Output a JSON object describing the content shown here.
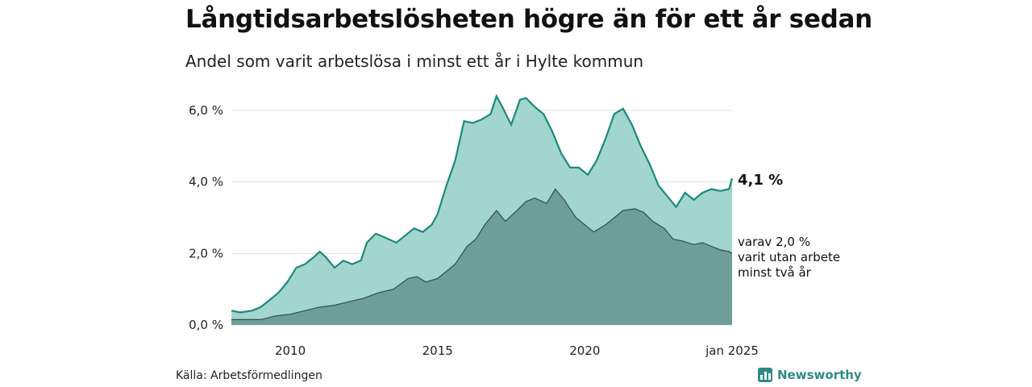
{
  "title": "Långtidsarbetslösheten högre än för ett år sedan",
  "subtitle": "Andel som varit arbetslösa i minst ett år i Hylte kommun",
  "source": "Källa: Arbetsförmedlingen",
  "brand": "Newsworthy",
  "colors": {
    "area_total": "#a3d5cf",
    "line_total": "#1a8a7a",
    "area_two_years": "#6f9d97",
    "line_two_years": "#2f4f4a",
    "grid": "#dddddd"
  },
  "chart_data": {
    "type": "area",
    "title": "Långtidsarbetslösheten högre än för ett år sedan",
    "subtitle": "Andel som varit arbetslösa i minst ett år i Hylte kommun",
    "x_range": [
      2008.0,
      2025.0
    ],
    "ylim": [
      0,
      6.0
    ],
    "y_ticks": [
      0,
      2,
      4,
      6
    ],
    "y_tick_labels": [
      "0,0 %",
      "2,0 %",
      "4,0 %",
      "6,0 %"
    ],
    "x_ticks": [
      2010,
      2015,
      2020,
      2025
    ],
    "x_tick_labels": [
      "2010",
      "2015",
      "2020",
      "jan 2025"
    ],
    "grid": true,
    "series": [
      {
        "x": [
          2008.0,
          2008.3,
          2008.7,
          2009.0,
          2009.3,
          2009.6,
          2009.9,
          2010.2,
          2010.5,
          2010.8,
          2011.0,
          2011.2,
          2011.5,
          2011.8,
          2012.1,
          2012.4,
          2012.6,
          2012.9,
          2013.2,
          2013.6,
          2013.9,
          2014.2,
          2014.5,
          2014.8,
          2015.0,
          2015.3,
          2015.6,
          2015.9,
          2016.2,
          2016.5,
          2016.8,
          2017.0,
          2017.2,
          2017.5,
          2017.8,
          2018.0,
          2018.3,
          2018.6,
          2018.9,
          2019.2,
          2019.5,
          2019.8,
          2020.1,
          2020.4,
          2020.7,
          2021.0,
          2021.3,
          2021.6,
          2021.9,
          2022.2,
          2022.5,
          2022.8,
          2023.1,
          2023.4,
          2023.7,
          2024.0,
          2024.3,
          2024.6,
          2024.9,
          2025.0
        ],
        "values": [
          0.4,
          0.35,
          0.4,
          0.5,
          0.7,
          0.9,
          1.2,
          1.6,
          1.7,
          1.9,
          2.05,
          1.9,
          1.6,
          1.8,
          1.7,
          1.8,
          2.3,
          2.55,
          2.45,
          2.3,
          2.5,
          2.7,
          2.6,
          2.8,
          3.1,
          3.9,
          4.6,
          5.7,
          5.65,
          5.75,
          5.9,
          6.4,
          6.1,
          5.6,
          6.3,
          6.35,
          6.1,
          5.9,
          5.4,
          4.8,
          4.4,
          4.4,
          4.2,
          4.6,
          5.2,
          5.9,
          6.05,
          5.6,
          5.0,
          4.5,
          3.9,
          3.6,
          3.3,
          3.7,
          3.5,
          3.7,
          3.8,
          3.75,
          3.8,
          4.1
        ]
      },
      {
        "x": [
          2008.0,
          2008.5,
          2009.0,
          2009.5,
          2010.0,
          2010.5,
          2011.0,
          2011.5,
          2012.0,
          2012.5,
          2013.0,
          2013.5,
          2014.0,
          2014.3,
          2014.6,
          2015.0,
          2015.3,
          2015.6,
          2016.0,
          2016.3,
          2016.6,
          2017.0,
          2017.3,
          2017.7,
          2018.0,
          2018.3,
          2018.7,
          2019.0,
          2019.3,
          2019.7,
          2020.0,
          2020.3,
          2020.7,
          2021.0,
          2021.3,
          2021.7,
          2022.0,
          2022.3,
          2022.7,
          2023.0,
          2023.3,
          2023.7,
          2024.0,
          2024.3,
          2024.6,
          2024.9,
          2025.0
        ],
        "values": [
          0.15,
          0.15,
          0.15,
          0.25,
          0.3,
          0.4,
          0.5,
          0.55,
          0.65,
          0.75,
          0.9,
          1.0,
          1.3,
          1.35,
          1.2,
          1.3,
          1.5,
          1.7,
          2.2,
          2.4,
          2.8,
          3.2,
          2.9,
          3.2,
          3.45,
          3.55,
          3.4,
          3.8,
          3.5,
          3.0,
          2.8,
          2.6,
          2.8,
          3.0,
          3.2,
          3.25,
          3.15,
          2.9,
          2.7,
          2.4,
          2.35,
          2.25,
          2.3,
          2.2,
          2.1,
          2.05,
          2.0
        ]
      }
    ],
    "end_labels": {
      "total": "4,1 %",
      "two_years": [
        "varav 2,0 %",
        "varit utan arbete",
        "minst två år"
      ]
    }
  }
}
